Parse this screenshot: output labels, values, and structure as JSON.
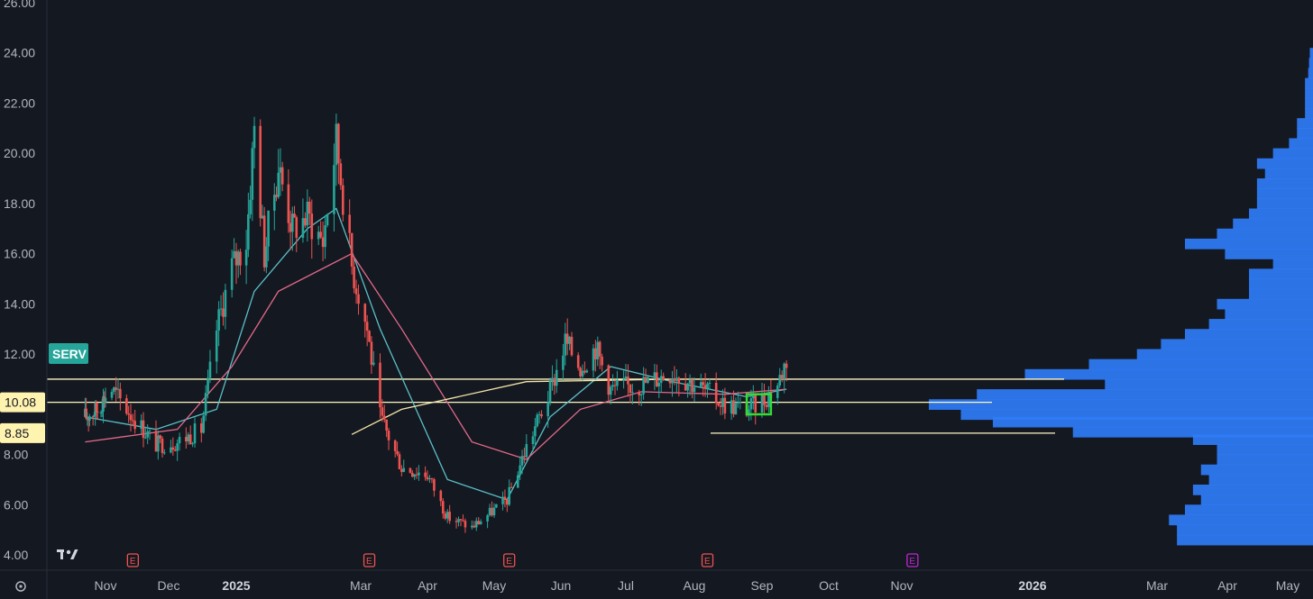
{
  "colors": {
    "background": "#141821",
    "up": "#26a69a",
    "down": "#ef5350",
    "ma_fast": "#5bc0c8",
    "ma_mid": "#e36a8a",
    "ma_slow": "#f5e6a8",
    "hline": "#fff7c2",
    "volume_profile": "#2f7cf6",
    "highlight_box": "#33dd33",
    "ticker_bg": "#26a69a",
    "tag_bg": "#fff3b0",
    "earnings_past": "#ef5350",
    "earnings_future": "#c026d3"
  },
  "icons": {
    "logo": "tradingview-logo-icon",
    "settings": "settings-icon"
  },
  "chart_data": {
    "type": "candlestick",
    "ticker": "SERV",
    "y_axis": {
      "ticks": [
        "4.00",
        "6.00",
        "8.00",
        "12.00",
        "14.00",
        "16.00",
        "18.00",
        "20.00",
        "22.00",
        "24.00",
        "26.00"
      ],
      "ylim": [
        4.0,
        26.0
      ]
    },
    "x_axis": {
      "labels": [
        {
          "text": "Nov"
        },
        {
          "text": "Dec"
        },
        {
          "text": "2025",
          "bold": true
        },
        {
          "text": "Mar"
        },
        {
          "text": "Apr"
        },
        {
          "text": "May"
        },
        {
          "text": "Jun"
        },
        {
          "text": "Jul"
        },
        {
          "text": "Aug"
        },
        {
          "text": "Sep"
        },
        {
          "text": "Oct"
        },
        {
          "text": "Nov"
        },
        {
          "text": "2026",
          "bold": true
        },
        {
          "text": "Mar"
        },
        {
          "text": "Apr"
        },
        {
          "text": "May"
        }
      ]
    },
    "price_tags": [
      {
        "label": "10.08",
        "value": 10.08
      },
      {
        "label": "8.85",
        "value": 8.85
      }
    ],
    "horizontal_lines": [
      {
        "value": 11.0
      },
      {
        "value": 10.08
      },
      {
        "value": 8.85
      }
    ],
    "earnings_markers": [
      {
        "label": "E",
        "date": "2024-11-14",
        "status": "past"
      },
      {
        "label": "E",
        "date": "2025-03-05",
        "status": "past"
      },
      {
        "label": "E",
        "date": "2025-05-08",
        "status": "past"
      },
      {
        "label": "E",
        "date": "2025-08-07",
        "status": "past"
      },
      {
        "label": "E",
        "date": "2025-11-06",
        "status": "upcoming"
      }
    ],
    "highlight_box": {
      "x_range": [
        "2025-08-25",
        "2025-09-05"
      ],
      "y_range": [
        9.6,
        10.4
      ]
    },
    "price_path": [
      [
        "2024-10-14",
        9.5
      ],
      [
        "2024-10-25",
        9.8
      ],
      [
        "2024-11-04",
        10.6
      ],
      [
        "2024-11-14",
        9.5
      ],
      [
        "2024-11-25",
        8.4
      ],
      [
        "2024-12-05",
        8.5
      ],
      [
        "2024-12-16",
        9.0
      ],
      [
        "2024-12-23",
        13.0
      ],
      [
        "2024-12-30",
        15.5
      ],
      [
        "2025-01-06",
        16.5
      ],
      [
        "2025-01-10",
        21.0
      ],
      [
        "2025-01-15",
        16.0
      ],
      [
        "2025-01-22",
        19.5
      ],
      [
        "2025-01-29",
        17.0
      ],
      [
        "2025-02-05",
        17.5
      ],
      [
        "2025-02-12",
        16.5
      ],
      [
        "2025-02-18",
        20.5
      ],
      [
        "2025-02-25",
        15.5
      ],
      [
        "2025-03-04",
        13.0
      ],
      [
        "2025-03-10",
        9.5
      ],
      [
        "2025-03-20",
        7.5
      ],
      [
        "2025-04-01",
        7.2
      ],
      [
        "2025-04-10",
        5.5
      ],
      [
        "2025-04-21",
        5.1
      ],
      [
        "2025-05-01",
        5.8
      ],
      [
        "2025-05-07",
        6.2
      ],
      [
        "2025-05-16",
        8.3
      ],
      [
        "2025-05-27",
        10.5
      ],
      [
        "2025-06-03",
        12.5
      ],
      [
        "2025-06-10",
        11.5
      ],
      [
        "2025-06-17",
        12.3
      ],
      [
        "2025-06-24",
        10.6
      ],
      [
        "2025-07-08",
        10.8
      ],
      [
        "2025-07-22",
        11.3
      ],
      [
        "2025-08-05",
        10.6
      ],
      [
        "2025-08-15",
        10.0
      ],
      [
        "2025-08-25",
        9.8
      ],
      [
        "2025-09-02",
        10.2
      ],
      [
        "2025-09-08",
        10.8
      ],
      [
        "2025-09-12",
        11.8
      ]
    ],
    "moving_averages": [
      {
        "key": "ma_fast",
        "points": [
          [
            "2024-10-14",
            9.5
          ],
          [
            "2024-11-25",
            9.0
          ],
          [
            "2024-12-23",
            9.8
          ],
          [
            "2025-01-10",
            14.5
          ],
          [
            "2025-02-05",
            17.0
          ],
          [
            "2025-02-18",
            17.8
          ],
          [
            "2025-03-10",
            13.0
          ],
          [
            "2025-04-10",
            7.0
          ],
          [
            "2025-05-07",
            6.2
          ],
          [
            "2025-05-27",
            9.5
          ],
          [
            "2025-06-24",
            11.5
          ],
          [
            "2025-07-22",
            10.9
          ],
          [
            "2025-08-25",
            10.3
          ],
          [
            "2025-09-12",
            10.6
          ]
        ]
      },
      {
        "key": "ma_mid",
        "points": [
          [
            "2024-10-14",
            8.5
          ],
          [
            "2024-12-05",
            9.0
          ],
          [
            "2024-12-30",
            11.5
          ],
          [
            "2025-01-22",
            14.5
          ],
          [
            "2025-02-25",
            16.0
          ],
          [
            "2025-03-20",
            13.0
          ],
          [
            "2025-04-21",
            8.5
          ],
          [
            "2025-05-16",
            7.8
          ],
          [
            "2025-06-10",
            9.8
          ],
          [
            "2025-07-08",
            10.5
          ],
          [
            "2025-08-15",
            10.4
          ],
          [
            "2025-09-12",
            10.6
          ]
        ]
      },
      {
        "key": "ma_slow",
        "points": [
          [
            "2025-02-25",
            8.8
          ],
          [
            "2025-03-20",
            9.8
          ],
          [
            "2025-05-16",
            10.9
          ],
          [
            "2025-07-22",
            11.0
          ],
          [
            "2025-09-12",
            11.0
          ]
        ]
      }
    ],
    "volume_profile": [
      [
        4.6,
        0.17
      ],
      [
        5.0,
        0.17
      ],
      [
        5.4,
        0.18
      ],
      [
        5.8,
        0.16
      ],
      [
        6.2,
        0.14
      ],
      [
        6.6,
        0.15
      ],
      [
        7.0,
        0.13
      ],
      [
        7.4,
        0.14
      ],
      [
        7.8,
        0.12
      ],
      [
        8.2,
        0.12
      ],
      [
        8.6,
        0.15
      ],
      [
        8.9,
        0.3
      ],
      [
        9.3,
        0.4
      ],
      [
        9.6,
        0.44
      ],
      [
        10.0,
        0.48
      ],
      [
        10.4,
        0.42
      ],
      [
        10.8,
        0.26
      ],
      [
        11.2,
        0.36
      ],
      [
        11.6,
        0.28
      ],
      [
        12.0,
        0.22
      ],
      [
        12.4,
        0.19
      ],
      [
        12.8,
        0.16
      ],
      [
        13.2,
        0.13
      ],
      [
        13.6,
        0.11
      ],
      [
        14.0,
        0.12
      ],
      [
        14.4,
        0.08
      ],
      [
        14.8,
        0.08
      ],
      [
        15.2,
        0.08
      ],
      [
        15.6,
        0.05
      ],
      [
        16.0,
        0.11
      ],
      [
        16.4,
        0.16
      ],
      [
        16.8,
        0.12
      ],
      [
        17.2,
        0.1
      ],
      [
        17.6,
        0.08
      ],
      [
        18.0,
        0.07
      ],
      [
        18.4,
        0.07
      ],
      [
        18.8,
        0.07
      ],
      [
        19.2,
        0.06
      ],
      [
        19.6,
        0.07
      ],
      [
        20.0,
        0.05
      ],
      [
        20.4,
        0.03
      ],
      [
        20.8,
        0.02
      ],
      [
        21.2,
        0.02
      ],
      [
        21.6,
        0.01
      ],
      [
        22.0,
        0.01
      ],
      [
        22.4,
        0.01
      ],
      [
        22.8,
        0.01
      ],
      [
        23.2,
        0.006
      ],
      [
        23.6,
        0.005
      ],
      [
        24.0,
        0.004
      ]
    ]
  }
}
